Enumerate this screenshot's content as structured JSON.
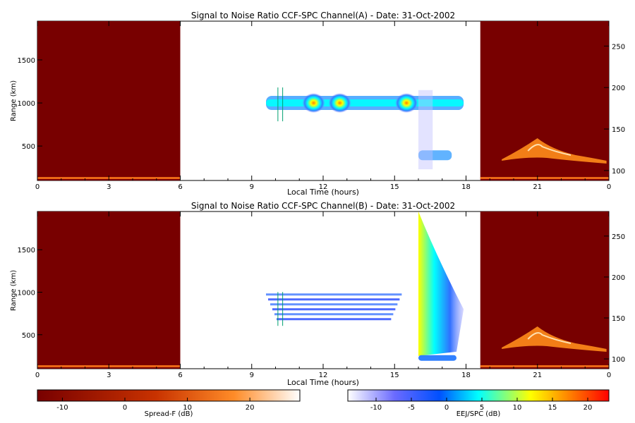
{
  "chart_data": [
    {
      "type": "heatmap",
      "title": "Signal to Noise Ratio CCF-SPC Channel(A) - Date: 31-Oct-2002",
      "xlabel": "Local Time (hours)",
      "ylabel": "Range (km)",
      "xlim": [
        0,
        24
      ],
      "ylim": [
        100,
        1950
      ],
      "xticks": [
        "0",
        "3",
        "6",
        "9",
        "12",
        "15",
        "18",
        "21",
        "0"
      ],
      "yticks": [
        500,
        1000,
        1500
      ],
      "y2ticks": [
        100,
        150,
        200,
        250
      ],
      "y2lim": [
        88,
        280
      ],
      "spreadf_blocks": [
        [
          0,
          6
        ],
        [
          18.6,
          24
        ]
      ],
      "eej_band": {
        "range_km": 1000,
        "start_h": 9.6,
        "end_h": 17.9
      },
      "cursor_lines_h": [
        10.1,
        10.3
      ]
    },
    {
      "type": "heatmap",
      "title": "Signal to Noise Ratio CCF-SPC Channel(B) - Date: 31-Oct-2002",
      "xlabel": "Local Time (hours)",
      "ylabel": "Range (km)",
      "xlim": [
        0,
        24
      ],
      "ylim": [
        100,
        1950
      ],
      "xticks": [
        "0",
        "3",
        "6",
        "9",
        "12",
        "15",
        "18",
        "21",
        "0"
      ],
      "yticks": [
        500,
        1000,
        1500
      ],
      "y2ticks": [
        100,
        150,
        200,
        250
      ],
      "y2lim": [
        88,
        280
      ],
      "spreadf_blocks": [
        [
          0,
          6
        ],
        [
          18.6,
          24
        ]
      ],
      "eej_band": {
        "range_km": 820,
        "start_h": 9.6,
        "end_h": 15.3
      },
      "cursor_lines_h": [
        10.1,
        10.3
      ]
    }
  ],
  "colorbars": [
    {
      "label": "Spread-F (dB)",
      "ticks": [
        "-10",
        "0",
        "10",
        "20"
      ],
      "range": [
        -14,
        28
      ],
      "colors": [
        "#780000",
        "#ff6400",
        "#ffffff"
      ]
    },
    {
      "label": "EEJ/SPC (dB)",
      "ticks": [
        "-10",
        "-5",
        "0",
        "5",
        "10",
        "15",
        "20"
      ],
      "range": [
        -14,
        23
      ],
      "colors": [
        "#ffffff",
        "#0000ff",
        "#00ffff",
        "#ffff00",
        "#ff0000"
      ]
    }
  ]
}
